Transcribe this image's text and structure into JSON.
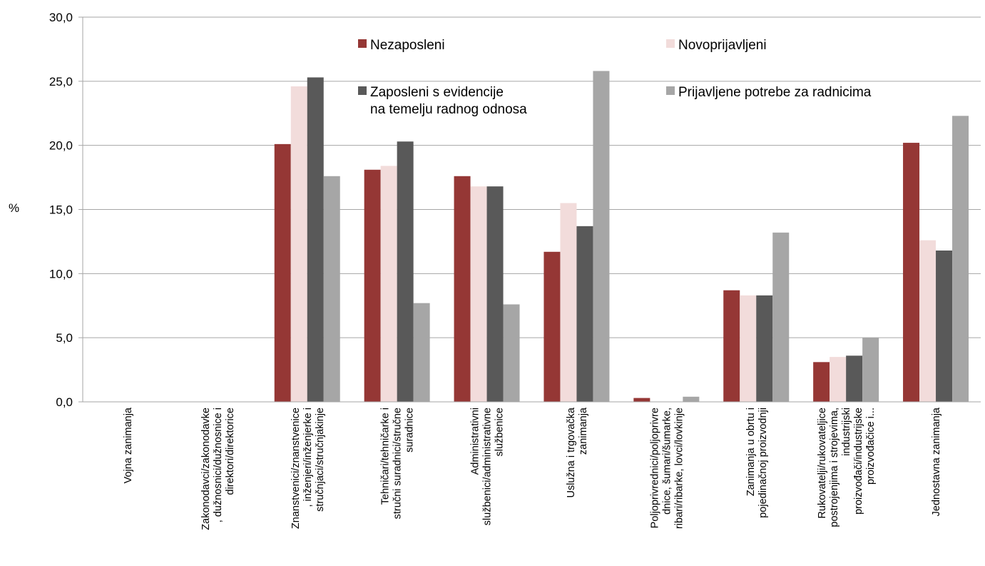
{
  "chart_data": {
    "type": "bar",
    "ylabel": "%",
    "ylim": [
      0,
      30
    ],
    "ytick_labels": [
      "0,0",
      "5,0",
      "10,0",
      "15,0",
      "20,0",
      "25,0",
      "30,0"
    ],
    "grid": true,
    "legend_position": "top-inside",
    "categories": [
      [
        "Vojna zanimanja"
      ],
      [
        "Zakonodavci/zakonodavke",
        ", dužnosnici/dužnosnice i",
        "direktori/direktorice"
      ],
      [
        "Znanstvenici/znanstvenice",
        ", inženjeri/inženjerke i",
        "stručnjaci/stručnjakinje"
      ],
      [
        "Tehničari/tehničarke i",
        "stručni suradnici/stručne",
        "suradnice"
      ],
      [
        "Administrativni",
        "službenici/administrativne",
        "službenice"
      ],
      [
        "Uslužna i trgovačka",
        "zanimanja"
      ],
      [
        "Poljoprivrednici/poljoprivre",
        "dnice, šumari/šumarke,",
        "ribari/ribarke, lovci/lovkinje"
      ],
      [
        "Zanimanja u obrtu i",
        "pojedinačnoj proizvodnji"
      ],
      [
        "Rukovatelji/rukovateljice",
        "postrojenjima i strojevima,",
        "industrijski",
        "proizvođači/industrijske",
        "proizvođačice i..."
      ],
      [
        "Jednostavna zanimanja"
      ]
    ],
    "series": [
      {
        "name": "Nezaposleni",
        "color": "#953735",
        "values": [
          0,
          0,
          20.1,
          18.1,
          17.6,
          11.7,
          0.3,
          8.7,
          3.1,
          20.2
        ]
      },
      {
        "name": "Novoprijavljeni",
        "color": "#f2dcdb",
        "values": [
          0,
          0,
          24.6,
          18.4,
          16.8,
          15.5,
          0,
          8.3,
          3.5,
          12.6
        ]
      },
      {
        "name": "Zaposleni s evidencije na temelju radnog odnosa",
        "name_lines": [
          "Zaposleni s evidencije",
          "na temelju radnog odnosa"
        ],
        "color": "#595959",
        "values": [
          0,
          0,
          25.3,
          20.3,
          16.8,
          13.7,
          0,
          8.3,
          3.6,
          11.8
        ]
      },
      {
        "name": "Prijavljene potrebe za radnicima",
        "color": "#a6a6a6",
        "values": [
          0,
          0,
          17.6,
          7.7,
          7.6,
          25.8,
          0.4,
          13.2,
          5.0,
          22.3
        ]
      }
    ]
  }
}
